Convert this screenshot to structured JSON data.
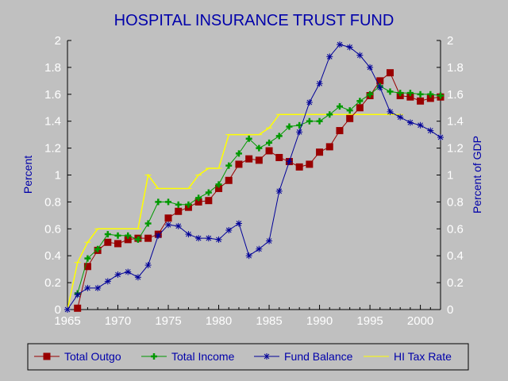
{
  "chart_data": {
    "type": "line",
    "title": "HOSPITAL INSURANCE TRUST FUND",
    "ylabel_left": "Percent",
    "ylabel_right": "Percent of GDP",
    "xlim": [
      1965,
      2002
    ],
    "ylim": [
      0,
      2
    ],
    "x_ticks": [
      1965,
      1970,
      1975,
      1980,
      1985,
      1990,
      1995,
      2000
    ],
    "y_ticks": [
      0,
      0.2,
      0.4,
      0.6,
      0.8,
      1,
      1.2,
      1.4,
      1.6,
      1.8,
      2
    ],
    "y_tick_labels": [
      "0",
      "0.2",
      "0.4",
      "0.6",
      "0.8",
      "1",
      "1.2",
      "1.4",
      "1.6",
      "1.8",
      "2"
    ],
    "grid": false,
    "legend_position": "bottom",
    "series": [
      {
        "name": "Total Outgo",
        "color": "#990000",
        "marker": "square",
        "x": [
          1966,
          1967,
          1968,
          1969,
          1970,
          1971,
          1972,
          1973,
          1974,
          1975,
          1976,
          1977,
          1978,
          1979,
          1980,
          1981,
          1982,
          1983,
          1984,
          1985,
          1986,
          1987,
          1988,
          1989,
          1990,
          1991,
          1992,
          1993,
          1994,
          1995,
          1996,
          1997,
          1998,
          1999,
          2000,
          2001,
          2002
        ],
        "values": [
          0.01,
          0.32,
          0.44,
          0.5,
          0.49,
          0.52,
          0.53,
          0.53,
          0.56,
          0.68,
          0.73,
          0.76,
          0.8,
          0.81,
          0.9,
          0.96,
          1.08,
          1.12,
          1.11,
          1.18,
          1.13,
          1.1,
          1.06,
          1.08,
          1.17,
          1.21,
          1.33,
          1.42,
          1.5,
          1.59,
          1.7,
          1.76,
          1.59,
          1.58,
          1.55,
          1.57,
          1.58
        ]
      },
      {
        "name": "Total Income",
        "color": "#009900",
        "marker": "plus",
        "x": [
          1966,
          1967,
          1968,
          1969,
          1970,
          1971,
          1972,
          1973,
          1974,
          1975,
          1976,
          1977,
          1978,
          1979,
          1980,
          1981,
          1982,
          1983,
          1984,
          1985,
          1986,
          1987,
          1988,
          1989,
          1990,
          1991,
          1992,
          1993,
          1994,
          1995,
          1996,
          1997,
          1998,
          1999,
          2000,
          2001,
          2002
        ],
        "values": [
          0.12,
          0.38,
          0.45,
          0.56,
          0.55,
          0.55,
          0.52,
          0.64,
          0.8,
          0.8,
          0.78,
          0.78,
          0.83,
          0.87,
          0.93,
          1.07,
          1.16,
          1.27,
          1.2,
          1.24,
          1.29,
          1.36,
          1.37,
          1.4,
          1.4,
          1.45,
          1.51,
          1.48,
          1.55,
          1.6,
          1.66,
          1.62,
          1.61,
          1.61,
          1.6,
          1.6,
          1.59
        ]
      },
      {
        "name": "Fund Balance",
        "color": "#000099",
        "marker": "asterisk",
        "x": [
          1965,
          1966,
          1967,
          1968,
          1969,
          1970,
          1971,
          1972,
          1973,
          1974,
          1975,
          1976,
          1977,
          1978,
          1979,
          1980,
          1981,
          1982,
          1983,
          1984,
          1985,
          1986,
          1987,
          1988,
          1989,
          1990,
          1991,
          1992,
          1993,
          1994,
          1995,
          1996,
          1997,
          1998,
          1999,
          2000,
          2001,
          2002
        ],
        "values": [
          0.0,
          0.11,
          0.16,
          0.16,
          0.21,
          0.26,
          0.28,
          0.24,
          0.33,
          0.55,
          0.63,
          0.62,
          0.56,
          0.53,
          0.53,
          0.52,
          0.59,
          0.64,
          0.4,
          0.45,
          0.51,
          0.88,
          1.1,
          1.32,
          1.54,
          1.68,
          1.88,
          1.97,
          1.95,
          1.89,
          1.8,
          1.65,
          1.47,
          1.43,
          1.39,
          1.37,
          1.33,
          1.28
        ]
      },
      {
        "name": "HI Tax Rate",
        "color": "#ffff00",
        "marker": "dash",
        "x": [
          1965,
          1966,
          1967,
          1968,
          1969,
          1970,
          1971,
          1972,
          1973,
          1974,
          1975,
          1976,
          1977,
          1978,
          1979,
          1980,
          1981,
          1982,
          1983,
          1984,
          1985,
          1986,
          1987,
          1988,
          1989,
          1990,
          1991,
          1992,
          1993,
          1994,
          1995,
          1996,
          1997,
          1998
        ],
        "values": [
          0.0,
          0.35,
          0.5,
          0.6,
          0.6,
          0.6,
          0.6,
          0.6,
          1.0,
          0.9,
          0.9,
          0.9,
          0.9,
          1.0,
          1.05,
          1.05,
          1.3,
          1.3,
          1.3,
          1.3,
          1.35,
          1.45,
          1.45,
          1.45,
          1.45,
          1.45,
          1.45,
          1.45,
          1.45,
          1.45,
          1.45,
          1.45,
          1.45,
          1.45
        ]
      }
    ]
  }
}
